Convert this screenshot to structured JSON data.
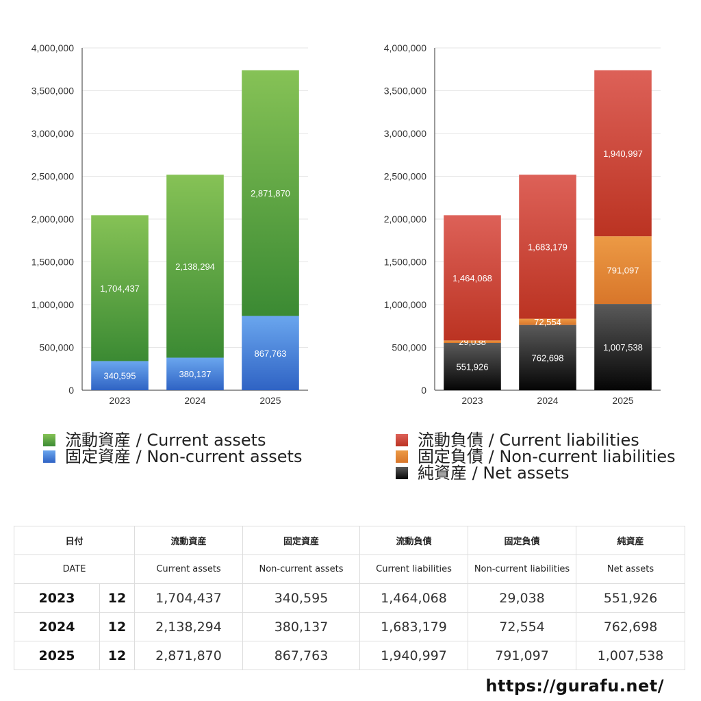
{
  "chart_data": [
    {
      "type": "bar",
      "stacked": true,
      "categories": [
        "2023",
        "2024",
        "2025"
      ],
      "yticks": [
        "0",
        "500,000",
        "1,000,000",
        "1,500,000",
        "2,000,000",
        "2,500,000",
        "3,000,000",
        "3,500,000",
        "4,000,000"
      ],
      "ylim": [
        0,
        4000000
      ],
      "grid": true,
      "legend_position": "bottom",
      "series": [
        {
          "name": "固定資産 / Non-current assets",
          "values": [
            340595,
            380137,
            867763
          ],
          "labels": [
            "340,595",
            "380,137",
            "867,763"
          ],
          "color_top": "#6aa6ee",
          "color_bottom": "#2f63c4"
        },
        {
          "name": "流動資産 / Current assets",
          "values": [
            1704437,
            2138294,
            2871870
          ],
          "labels": [
            "1,704,437",
            "2,138,294",
            "2,871,870"
          ],
          "color_top": "#86c256",
          "color_bottom": "#3b8a33"
        }
      ]
    },
    {
      "type": "bar",
      "stacked": true,
      "categories": [
        "2023",
        "2024",
        "2025"
      ],
      "yticks": [
        "0",
        "500,000",
        "1,000,000",
        "1,500,000",
        "2,000,000",
        "2,500,000",
        "3,000,000",
        "3,500,000",
        "4,000,000"
      ],
      "ylim": [
        0,
        4000000
      ],
      "grid": true,
      "legend_position": "bottom",
      "series": [
        {
          "name": "純資産 / Net assets",
          "values": [
            551926,
            762698,
            1007538
          ],
          "labels": [
            "551,926",
            "762,698",
            "1,007,538"
          ],
          "color_top": "#5a5a5a",
          "color_bottom": "#050505"
        },
        {
          "name": "固定負債 / Non-current liabilities",
          "values": [
            29038,
            72554,
            791097
          ],
          "labels": [
            "29,038",
            "72,554",
            "791,097"
          ],
          "color_top": "#ec9a45",
          "color_bottom": "#d8762a"
        },
        {
          "name": "流動負債 / Current liabilities",
          "values": [
            1464068,
            1683179,
            1940997
          ],
          "labels": [
            "1,464,068",
            "1,683,179",
            "1,940,997"
          ],
          "color_top": "#dd6158",
          "color_bottom": "#bb3322"
        }
      ]
    }
  ],
  "legend_left": [
    {
      "label": "流動資産 / Current assets",
      "color": "#55a540"
    },
    {
      "label": "固定資産 / Non-current assets",
      "color": "#3f7fdc"
    }
  ],
  "legend_right": [
    {
      "label": "流動負債 / Current liabilities",
      "color": "#d2473c"
    },
    {
      "label": "固定負債 / Non-current liabilities",
      "color": "#e4873a"
    },
    {
      "label": "純資産 / Net assets",
      "color": "#2a2a2a"
    }
  ],
  "table": {
    "header_jp": {
      "date": "日付",
      "c1": "流動資産",
      "c2": "固定資産",
      "c3": "流動負債",
      "c4": "固定負債",
      "c5": "純資産"
    },
    "header_en": {
      "date": "DATE",
      "c1": "Current assets",
      "c2": "Non-current assets",
      "c3": "Current liabilities",
      "c4": "Non-current liabilities",
      "c5": "Net assets"
    },
    "rows": [
      {
        "year": "2023",
        "month": "12",
        "c1": "1,704,437",
        "c2": "340,595",
        "c3": "1,464,068",
        "c4": "29,038",
        "c5": "551,926"
      },
      {
        "year": "2024",
        "month": "12",
        "c1": "2,138,294",
        "c2": "380,137",
        "c3": "1,683,179",
        "c4": "72,554",
        "c5": "762,698"
      },
      {
        "year": "2025",
        "month": "12",
        "c1": "2,871,870",
        "c2": "867,763",
        "c3": "1,940,997",
        "c4": "791,097",
        "c5": "1,007,538"
      }
    ]
  },
  "site_url": "https://gurafu.net/"
}
